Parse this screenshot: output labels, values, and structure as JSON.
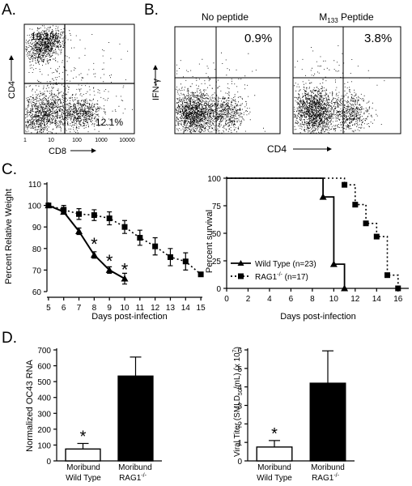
{
  "panel_labels": {
    "a": "A.",
    "b": "B.",
    "c": "C.",
    "d": "D."
  },
  "flow_a": {
    "ylabel": "CD4",
    "xlabel": "CD8",
    "ul_pct": "19.1%",
    "lr_pct": "12.1%",
    "ticks": [
      "1",
      "10",
      "100",
      "1000",
      "10000"
    ]
  },
  "flow_b": {
    "ylabel": "IFN-γ",
    "xlabel": "CD4",
    "left_title": "No peptide",
    "left_pct": "0.9%",
    "right_title_main": "M",
    "right_title_sub": "133",
    "right_title_rest": " Peptide",
    "right_pct": "3.8%"
  },
  "chart_data": [
    {
      "type": "line",
      "id": "weight",
      "ylabel": "Percent Relative Weight",
      "xlabel": "Days post-infection",
      "xlim": [
        5,
        15
      ],
      "ylim": [
        60,
        110
      ],
      "xticks": [
        5,
        6,
        7,
        8,
        9,
        10,
        11,
        12,
        13,
        14,
        15
      ],
      "yticks": [
        60,
        70,
        80,
        90,
        100,
        110
      ],
      "series": [
        {
          "style": "solid-triangle",
          "x": [
            5,
            6,
            7,
            8,
            9,
            10
          ],
          "y": [
            100,
            97,
            88,
            77,
            70,
            66
          ],
          "err": [
            0,
            1,
            1.5,
            1.5,
            1.5,
            2.5
          ]
        },
        {
          "style": "dotted-square",
          "x": [
            5,
            6,
            7,
            8,
            9,
            10,
            11,
            12,
            13,
            14,
            15
          ],
          "y": [
            100,
            98,
            96,
            95.5,
            94,
            90,
            85,
            81,
            76,
            74,
            68
          ],
          "err": [
            0,
            2,
            2.5,
            2.5,
            3,
            3,
            3.5,
            4,
            4,
            4,
            0
          ]
        }
      ],
      "annotations": [
        {
          "x": 8,
          "y": 83,
          "text": "*"
        },
        {
          "x": 9,
          "y": 75,
          "text": "*"
        },
        {
          "x": 10,
          "y": 71,
          "text": "*"
        }
      ]
    },
    {
      "type": "line",
      "id": "survival",
      "ylabel": "Percent survival",
      "xlabel": "Days post-infection",
      "xlim": [
        0,
        17
      ],
      "ylim": [
        0,
        100
      ],
      "xticks": [
        0,
        2,
        4,
        6,
        8,
        10,
        12,
        14,
        16
      ],
      "yticks": [
        0,
        25,
        50,
        75,
        100
      ],
      "series": [
        {
          "name": "Wild Type (n=23)",
          "style": "solid-triangle",
          "steps": [
            [
              0,
              100
            ],
            [
              9,
              100
            ],
            [
              9,
              83
            ],
            [
              10,
              83
            ],
            [
              10,
              22
            ],
            [
              11,
              22
            ],
            [
              11,
              0
            ]
          ],
          "marks": [
            [
              9,
              83
            ],
            [
              10,
              22
            ],
            [
              11,
              0
            ]
          ]
        },
        {
          "name_main": "RAG1",
          "name_sup": "-/-",
          "name_rest": " (n=17)",
          "style": "dotted-square",
          "steps": [
            [
              0,
              100
            ],
            [
              11,
              100
            ],
            [
              11,
              94
            ],
            [
              12,
              94
            ],
            [
              12,
              76
            ],
            [
              13,
              76
            ],
            [
              13,
              59
            ],
            [
              14,
              59
            ],
            [
              14,
              47
            ],
            [
              15,
              47
            ],
            [
              15,
              12
            ],
            [
              16,
              12
            ],
            [
              16,
              0
            ]
          ],
          "marks": [
            [
              11,
              94
            ],
            [
              12,
              76
            ],
            [
              13,
              59
            ],
            [
              14,
              47
            ],
            [
              15,
              12
            ],
            [
              16,
              0
            ]
          ]
        }
      ]
    },
    {
      "type": "bar",
      "id": "rna",
      "ylabel": "Normalized OC43 RNA",
      "ylim": [
        0,
        700
      ],
      "yticks": [
        0,
        100,
        200,
        300,
        400,
        500,
        600,
        700
      ],
      "categories": [
        [
          "Moribund",
          "Wild Type"
        ],
        [
          "Moribund",
          "RAG1"
        ]
      ],
      "cat2_sup": "-/-",
      "values": [
        75,
        535
      ],
      "err": [
        35,
        120
      ],
      "fills": [
        "#ffffff",
        "#000000"
      ],
      "star": "*"
    },
    {
      "type": "bar",
      "id": "titer",
      "ylabel_main": "Viral Titer (SMLD",
      "ylabel_sub": "50",
      "ylabel_mid": "/mL) (x 10",
      "ylabel_sup": "7",
      "ylabel_end": ")",
      "ylim": [
        0,
        6
      ],
      "yticks": [
        0,
        1,
        2,
        3,
        4,
        5,
        6
      ],
      "categories": [
        [
          "Moribund",
          "Wild Type"
        ],
        [
          "Moribund",
          "RAG1"
        ]
      ],
      "cat2_sup": "-/-",
      "values": [
        0.75,
        4.2
      ],
      "err": [
        0.35,
        1.75
      ],
      "fills": [
        "#ffffff",
        "#000000"
      ],
      "star": "*"
    }
  ]
}
